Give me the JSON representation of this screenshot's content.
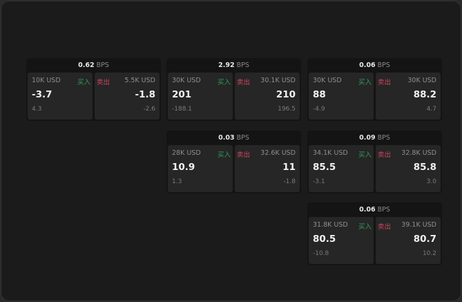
{
  "colors": {
    "buy": "#2f9e5c",
    "sell": "#d0455f",
    "background": "#1b1b1b"
  },
  "labels": {
    "buy": "买入",
    "sell": "卖出",
    "unit": "BPS"
  },
  "cards": [
    {
      "spread": "0.62",
      "bid_size": "10K USD",
      "bid": "-3.7",
      "bid_change": "4.3",
      "ask_size": "5.5K USD",
      "ask": "-1.8",
      "ask_change": "-2.6"
    },
    {
      "spread": "2.92",
      "bid_size": "30K USD",
      "bid": "201",
      "bid_change": "-188.1",
      "ask_size": "30.1K USD",
      "ask": "210",
      "ask_change": "196.5"
    },
    {
      "spread": "0.06",
      "bid_size": "30K USD",
      "bid": "88",
      "bid_change": "-4.9",
      "ask_size": "30K USD",
      "ask": "88.2",
      "ask_change": "4.7"
    },
    {
      "spread": "0.03",
      "bid_size": "28K USD",
      "bid": "10.9",
      "bid_change": "1.3",
      "ask_size": "32.6K USD",
      "ask": "11",
      "ask_change": "-1.8"
    },
    {
      "spread": "0.09",
      "bid_size": "34.1K USD",
      "bid": "85.5",
      "bid_change": "-3.1",
      "ask_size": "32.8K USD",
      "ask": "85.8",
      "ask_change": "3.0"
    },
    {
      "spread": "0.06",
      "bid_size": "31.8K USD",
      "bid": "80.5",
      "bid_change": "-10.8",
      "ask_size": "39.1K USD",
      "ask": "80.7",
      "ask_change": "10.2"
    }
  ]
}
